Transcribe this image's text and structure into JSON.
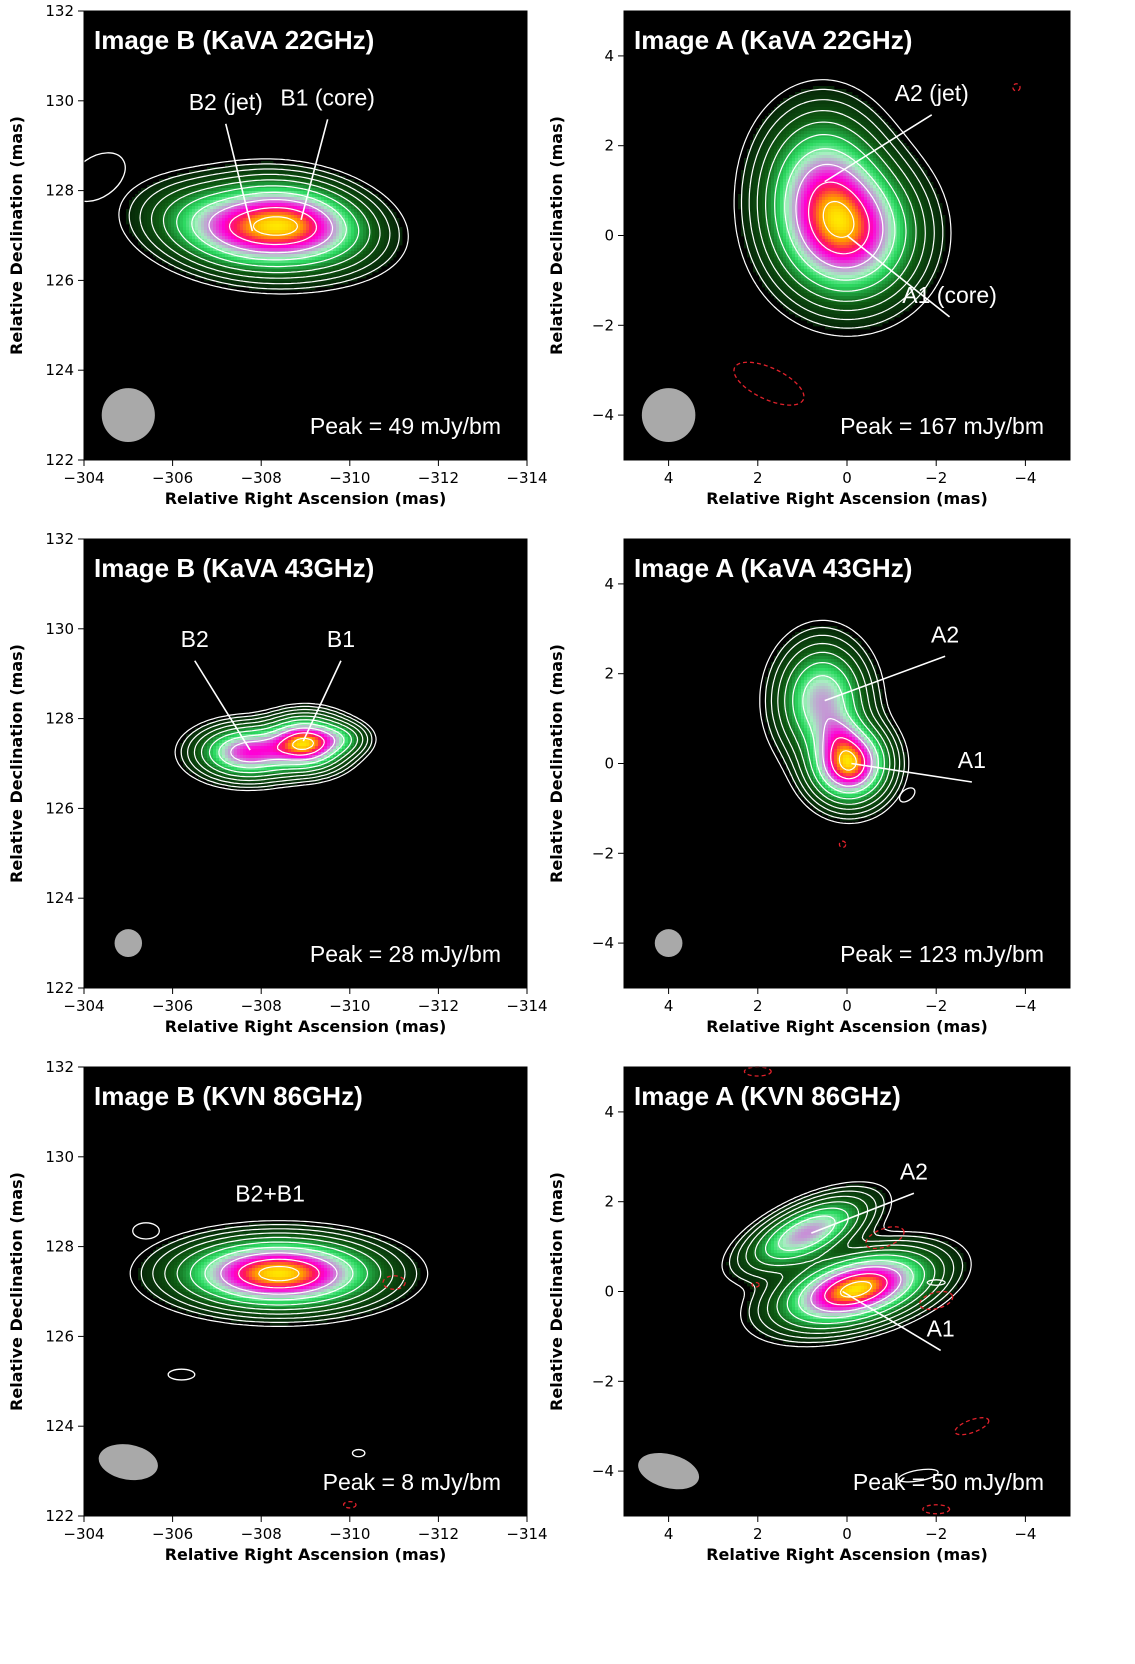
{
  "chart_data": [
    {
      "type": "heatmap",
      "title": "Image B (KaVA 22GHz)",
      "xlabel": "Relative Right Ascension (mas)",
      "ylabel": "Relative Declination (mas)",
      "xlim": [
        -304,
        -314
      ],
      "ylim": [
        122,
        132
      ],
      "xticks": [
        -304,
        -306,
        -308,
        -310,
        -312,
        -314
      ],
      "yticks": [
        122,
        124,
        126,
        128,
        130,
        132
      ],
      "peak_label": "Peak = 49 mJy/bm",
      "beam": {
        "x": -305,
        "y": 123,
        "major": 1.2,
        "minor": 1.2,
        "angle": 0
      },
      "components": [
        {
          "x": -307.5,
          "y": 127.1,
          "sigma_x": 1.05,
          "sigma_y": 0.5,
          "amp": 0.85,
          "angle": 10
        },
        {
          "x": -308.8,
          "y": 127.3,
          "sigma_x": 0.95,
          "sigma_y": 0.5,
          "amp": 1.0,
          "angle": 10
        }
      ],
      "extra_contours": [
        {
          "x": -304.3,
          "y": 128.3,
          "rx": 0.7,
          "ry": 0.45,
          "angle": -35,
          "dashed": false
        }
      ],
      "annotations": [
        {
          "text": "B2 (jet)",
          "tx": -307.2,
          "ty": 129.8,
          "px": -307.8,
          "py": 127.1
        },
        {
          "text": "B1 (core)",
          "tx": -309.5,
          "ty": 129.9,
          "px": -308.9,
          "py": 127.35
        }
      ]
    },
    {
      "type": "heatmap",
      "title": "Image A (KaVA 22GHz)",
      "xlabel": "Relative Right Ascension (mas)",
      "ylabel": "Relative Declination (mas)",
      "xlim": [
        5,
        -5
      ],
      "ylim": [
        -5,
        5
      ],
      "xticks": [
        4,
        2,
        0,
        -2,
        -4
      ],
      "yticks": [
        -4,
        -2,
        0,
        2,
        4
      ],
      "peak_label": "Peak = 167 mJy/bm",
      "beam": {
        "x": 4,
        "y": -4,
        "major": 1.2,
        "minor": 1.2,
        "angle": 0
      },
      "components": [
        {
          "x": -0.05,
          "y": 0.05,
          "sigma_x": 0.85,
          "sigma_y": 0.85,
          "amp": 1.0,
          "angle": 0
        },
        {
          "x": 0.55,
          "y": 1.05,
          "sigma_x": 0.75,
          "sigma_y": 0.95,
          "amp": 0.7,
          "angle": 0
        }
      ],
      "extra_contours": [
        {
          "x": -3.8,
          "y": 3.3,
          "rx": 0.08,
          "ry": 0.08,
          "angle": 0,
          "dashed": true
        },
        {
          "x": 1.75,
          "y": -3.3,
          "rx": 0.85,
          "ry": 0.35,
          "angle": 25,
          "dashed": true
        }
      ],
      "annotations": [
        {
          "text": "A2 (jet)",
          "tx": -1.9,
          "ty": 3.0,
          "px": 0.5,
          "py": 1.2
        },
        {
          "text": "A1 (core)",
          "tx": -2.3,
          "ty": -1.5,
          "px": 0.0,
          "py": 0.0
        }
      ]
    },
    {
      "type": "heatmap",
      "title": "Image B (KaVA 43GHz)",
      "xlabel": "Relative Right Ascension (mas)",
      "ylabel": "Relative Declination (mas)",
      "xlim": [
        -304,
        -314
      ],
      "ylim": [
        122,
        132
      ],
      "xticks": [
        -304,
        -306,
        -308,
        -310,
        -312,
        -314
      ],
      "yticks": [
        122,
        124,
        126,
        128,
        130,
        132
      ],
      "peak_label": "Peak = 28 mJy/bm",
      "beam": {
        "x": -305,
        "y": 123,
        "major": 0.62,
        "minor": 0.62,
        "angle": 0
      },
      "components": [
        {
          "x": -307.7,
          "y": 127.25,
          "sigma_x": 0.62,
          "sigma_y": 0.32,
          "amp": 0.72,
          "angle": 0
        },
        {
          "x": -309.0,
          "y": 127.45,
          "sigma_x": 0.5,
          "sigma_y": 0.32,
          "amp": 1.0,
          "angle": 0
        },
        {
          "x": -309.8,
          "y": 127.55,
          "sigma_x": 0.35,
          "sigma_y": 0.2,
          "amp": 0.2,
          "angle": 0
        }
      ],
      "extra_contours": [],
      "annotations": [
        {
          "text": "B2",
          "tx": -306.5,
          "ty": 129.6,
          "px": -307.75,
          "py": 127.3
        },
        {
          "text": "B1",
          "tx": -309.8,
          "ty": 129.6,
          "px": -308.95,
          "py": 127.5
        }
      ]
    },
    {
      "type": "heatmap",
      "title": "Image A (KaVA 43GHz)",
      "xlabel": "Relative Right Ascension (mas)",
      "ylabel": "Relative Declination (mas)",
      "xlim": [
        5,
        -5
      ],
      "ylim": [
        -5,
        5
      ],
      "xticks": [
        4,
        2,
        0,
        -2,
        -4
      ],
      "yticks": [
        -4,
        -2,
        0,
        2,
        4
      ],
      "peak_label": "Peak = 123 mJy/bm",
      "beam": {
        "x": 4,
        "y": -4,
        "major": 0.62,
        "minor": 0.62,
        "angle": 0
      },
      "components": [
        {
          "x": -0.05,
          "y": 0.0,
          "sigma_x": 0.48,
          "sigma_y": 0.48,
          "amp": 1.0,
          "angle": 0
        },
        {
          "x": 0.55,
          "y": 1.4,
          "sigma_x": 0.55,
          "sigma_y": 0.7,
          "amp": 0.55,
          "angle": 0
        },
        {
          "x": 0.2,
          "y": 0.65,
          "sigma_x": 0.3,
          "sigma_y": 0.3,
          "amp": 0.14,
          "angle": 0
        }
      ],
      "extra_contours": [
        {
          "x": -1.35,
          "y": -0.7,
          "rx": 0.2,
          "ry": 0.12,
          "angle": -40,
          "dashed": false
        },
        {
          "x": 0.1,
          "y": -1.8,
          "rx": 0.07,
          "ry": 0.07,
          "angle": 0,
          "dashed": true
        }
      ],
      "annotations": [
        {
          "text": "A2",
          "tx": -2.2,
          "ty": 2.7,
          "px": 0.5,
          "py": 1.4
        },
        {
          "text": "A1",
          "tx": -2.8,
          "ty": -0.1,
          "px": -0.1,
          "py": 0.0
        }
      ]
    },
    {
      "type": "heatmap",
      "title": "Image B (KVN 86GHz)",
      "xlabel": "Relative Right Ascension (mas)",
      "ylabel": "Relative Declination (mas)",
      "xlim": [
        -304,
        -314
      ],
      "ylim": [
        122,
        132
      ],
      "xticks": [
        -304,
        -306,
        -308,
        -310,
        -312,
        -314
      ],
      "yticks": [
        122,
        124,
        126,
        128,
        130,
        132
      ],
      "peak_label": "Peak = 8 mJy/bm",
      "beam": {
        "x": -305,
        "y": 123.2,
        "major": 1.35,
        "minor": 0.78,
        "angle": 10
      },
      "components": [
        {
          "x": -308.4,
          "y": 127.4,
          "sigma_x": 1.2,
          "sigma_y": 0.42,
          "amp": 0.75,
          "angle": 0
        }
      ],
      "extra_contours": [
        {
          "x": -305.4,
          "y": 128.35,
          "rx": 0.3,
          "ry": 0.18,
          "angle": 0,
          "dashed": false
        },
        {
          "x": -306.2,
          "y": 125.15,
          "rx": 0.3,
          "ry": 0.12,
          "angle": 0,
          "dashed": false
        },
        {
          "x": -311.0,
          "y": 127.2,
          "rx": 0.25,
          "ry": 0.15,
          "angle": 0,
          "dashed": true
        },
        {
          "x": -310.2,
          "y": 123.4,
          "rx": 0.14,
          "ry": 0.08,
          "angle": 0,
          "dashed": false
        },
        {
          "x": -310.0,
          "y": 122.25,
          "rx": 0.14,
          "ry": 0.07,
          "angle": 0,
          "dashed": true
        }
      ],
      "annotations": [
        {
          "text": "B2+B1",
          "tx": -308.2,
          "ty": 129.0,
          "px": null,
          "py": null
        }
      ]
    },
    {
      "type": "heatmap",
      "title": "Image A (KVN 86GHz)",
      "xlabel": "Relative Right Ascension (mas)",
      "ylabel": "Relative Declination (mas)",
      "xlim": [
        5,
        -5
      ],
      "ylim": [
        -5,
        5
      ],
      "xticks": [
        4,
        2,
        0,
        -2,
        -4
      ],
      "yticks": [
        -4,
        -2,
        0,
        2,
        4
      ],
      "peak_label": "Peak = 50 mJy/bm",
      "beam": {
        "x": 4,
        "y": -4,
        "major": 1.4,
        "minor": 0.75,
        "angle": 15
      },
      "components": [
        {
          "x": -0.2,
          "y": 0.05,
          "sigma_x": 0.95,
          "sigma_y": 0.4,
          "amp": 1.0,
          "angle": -15
        },
        {
          "x": 0.9,
          "y": 1.3,
          "sigma_x": 0.8,
          "sigma_y": 0.32,
          "amp": 0.55,
          "angle": -25
        }
      ],
      "extra_contours": [
        {
          "x": -0.85,
          "y": 1.2,
          "rx": 0.45,
          "ry": 0.2,
          "angle": -20,
          "dashed": true
        },
        {
          "x": -2.0,
          "y": 0.2,
          "rx": 0.2,
          "ry": 0.06,
          "angle": 0,
          "dashed": false
        },
        {
          "x": -2.0,
          "y": -0.2,
          "rx": 0.38,
          "ry": 0.18,
          "angle": -15,
          "dashed": true
        },
        {
          "x": 2.05,
          "y": 0.15,
          "rx": 0.08,
          "ry": 0.05,
          "angle": 0,
          "dashed": true
        },
        {
          "x": -2.8,
          "y": -3.0,
          "rx": 0.4,
          "ry": 0.14,
          "angle": -20,
          "dashed": true
        },
        {
          "x": -1.6,
          "y": -4.1,
          "rx": 0.45,
          "ry": 0.12,
          "angle": -10,
          "dashed": false
        },
        {
          "x": -2.0,
          "y": -4.85,
          "rx": 0.3,
          "ry": 0.1,
          "angle": 0,
          "dashed": true
        },
        {
          "x": 2.0,
          "y": 4.9,
          "rx": 0.3,
          "ry": 0.1,
          "angle": 0,
          "dashed": true
        }
      ],
      "annotations": [
        {
          "text": "A2",
          "tx": -1.5,
          "ty": 2.5,
          "px": 0.8,
          "py": 1.3
        },
        {
          "text": "A1",
          "tx": -2.1,
          "ty": -1.0,
          "px": 0.1,
          "py": 0.0
        }
      ]
    }
  ]
}
